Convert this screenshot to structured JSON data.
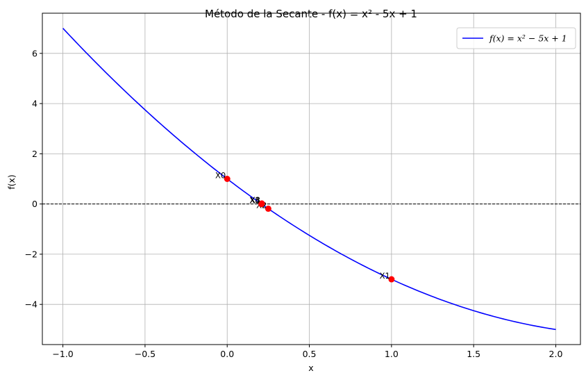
{
  "chart_data": {
    "type": "line",
    "title": "Método de la Secante - f(x) = x² - 5x + 1",
    "xlabel": "x",
    "ylabel": "f(x)",
    "xlim": [
      -1.125,
      2.15
    ],
    "ylim": [
      -5.6,
      7.6
    ],
    "x_ticks": [
      -1.0,
      -0.5,
      0.0,
      0.5,
      1.0,
      1.5,
      2.0
    ],
    "x_tick_labels": [
      "−1.0",
      "−0.5",
      "0.0",
      "0.5",
      "1.0",
      "1.5",
      "2.0"
    ],
    "y_ticks": [
      -4,
      -2,
      0,
      2,
      4,
      6
    ],
    "y_tick_labels": [
      "−4",
      "−2",
      "0",
      "2",
      "4",
      "6"
    ],
    "grid": true,
    "legend_placement": "top-right",
    "series": [
      {
        "name": "f(x) = x² − 5x + 1",
        "legend_label": "f(x) = x² − 5x + 1",
        "color": "#0000ff",
        "x": [
          -1.0,
          -0.75,
          -0.5,
          -0.25,
          0.0,
          0.25,
          0.5,
          0.75,
          1.0,
          1.25,
          1.5,
          1.75,
          2.0
        ],
        "y": [
          7.0,
          5.3125,
          3.75,
          2.3125,
          1.0,
          -0.1875,
          -1.25,
          -2.1875,
          -3.0,
          -3.6875,
          -4.25,
          -4.6875,
          -5.0
        ]
      }
    ],
    "points": [
      {
        "label": "X0",
        "x": 0.0,
        "y": 1.0
      },
      {
        "label": "X1",
        "x": 1.0,
        "y": -3.0
      },
      {
        "label": "X2",
        "x": 0.25,
        "y": -0.1875
      },
      {
        "label": "X3",
        "x": 0.2105,
        "y": 0.0208
      },
      {
        "label": "X4",
        "x": 0.2087,
        "y": 0.0001
      },
      {
        "label": "X5",
        "x": 0.2087,
        "y": 0.0
      }
    ],
    "point_color": "#ff0000",
    "reference_line": {
      "y": 0,
      "color": "#000000",
      "style": "dashed"
    }
  }
}
